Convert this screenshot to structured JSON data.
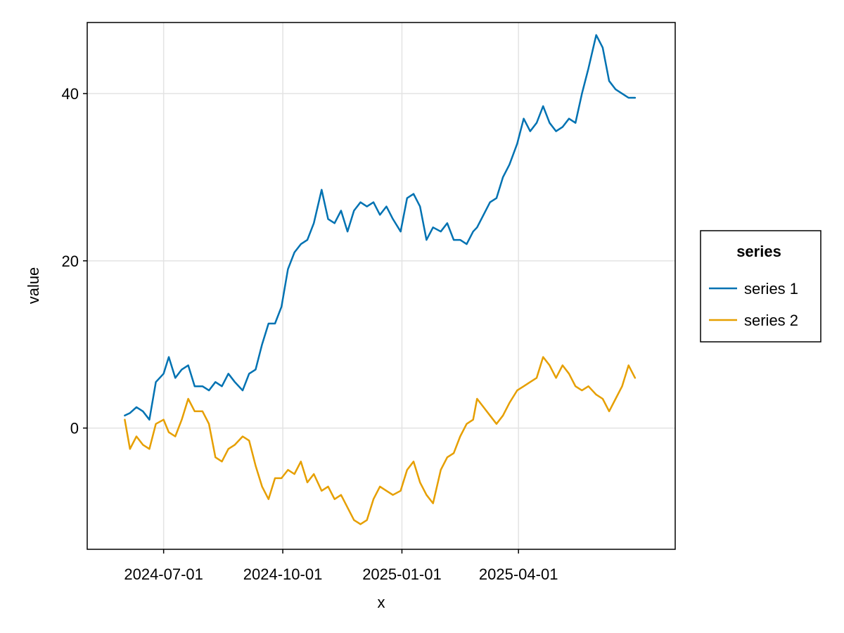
{
  "chart_data": {
    "type": "line",
    "xlabel": "x",
    "ylabel": "value",
    "x_axis": {
      "type": "date",
      "range": [
        "2024-05-03",
        "2025-07-31"
      ],
      "ticks": [
        "2024-07-01",
        "2024-10-01",
        "2025-01-01",
        "2025-04-01"
      ]
    },
    "y_axis": {
      "range": [
        -14.5,
        48.5
      ],
      "ticks": [
        0,
        20,
        40
      ]
    },
    "grid": true,
    "legend": {
      "title": "series",
      "position": "right"
    },
    "colors": {
      "series 1": "#0072b2",
      "series 2": "#e69f00"
    },
    "x": [
      "2024-06-01",
      "2024-06-05",
      "2024-06-10",
      "2024-06-15",
      "2024-06-20",
      "2024-06-25",
      "2024-07-01",
      "2024-07-05",
      "2024-07-10",
      "2024-07-15",
      "2024-07-20",
      "2024-07-25",
      "2024-07-31",
      "2024-08-05",
      "2024-08-10",
      "2024-08-15",
      "2024-08-20",
      "2024-08-25",
      "2024-08-31",
      "2024-09-05",
      "2024-09-10",
      "2024-09-15",
      "2024-09-20",
      "2024-09-25",
      "2024-09-30",
      "2024-10-05",
      "2024-10-10",
      "2024-10-15",
      "2024-10-20",
      "2024-10-25",
      "2024-10-31",
      "2024-11-05",
      "2024-11-10",
      "2024-11-15",
      "2024-11-20",
      "2024-11-25",
      "2024-11-30",
      "2024-12-05",
      "2024-12-10",
      "2024-12-15",
      "2024-12-20",
      "2024-12-25",
      "2024-12-31",
      "2025-01-05",
      "2025-01-10",
      "2025-01-15",
      "2025-01-20",
      "2025-01-25",
      "2025-01-31",
      "2025-02-05",
      "2025-02-10",
      "2025-02-15",
      "2025-02-20",
      "2025-02-25",
      "2025-02-28",
      "2025-03-05",
      "2025-03-10",
      "2025-03-15",
      "2025-03-20",
      "2025-03-25",
      "2025-03-31",
      "2025-04-05",
      "2025-04-10",
      "2025-04-15",
      "2025-04-20",
      "2025-04-25",
      "2025-04-30",
      "2025-05-05",
      "2025-05-10",
      "2025-05-15",
      "2025-05-20",
      "2025-05-25",
      "2025-05-31",
      "2025-06-05",
      "2025-06-10",
      "2025-06-15",
      "2025-06-20",
      "2025-06-25",
      "2025-06-30"
    ],
    "series": [
      {
        "name": "series 1",
        "values": [
          1.5,
          1.8,
          2.5,
          2.0,
          1.0,
          5.5,
          6.5,
          8.5,
          6.0,
          7.0,
          7.5,
          5.0,
          5.0,
          4.5,
          5.5,
          5.0,
          6.5,
          5.5,
          4.5,
          6.5,
          7.0,
          10.0,
          12.5,
          12.5,
          14.5,
          19.0,
          21.0,
          22.0,
          22.5,
          24.5,
          28.5,
          25.0,
          24.5,
          26.0,
          23.5,
          26.0,
          27.0,
          26.5,
          27.0,
          25.5,
          26.5,
          25.0,
          23.5,
          27.5,
          28.0,
          26.5,
          22.5,
          24.0,
          23.5,
          24.5,
          22.5,
          22.5,
          22.0,
          23.5,
          24.0,
          25.5,
          27.0,
          27.5,
          30.0,
          31.5,
          34.0,
          37.0,
          35.5,
          36.5,
          38.5,
          36.5,
          35.5,
          36.0,
          37.0,
          36.5,
          40.0,
          43.0,
          47.0,
          45.5,
          41.5,
          40.5,
          40.0,
          39.5,
          39.5
        ]
      },
      {
        "name": "series 2",
        "values": [
          1.0,
          -2.5,
          -1.0,
          -2.0,
          -2.5,
          0.5,
          1.0,
          -0.5,
          -1.0,
          1.0,
          3.5,
          2.0,
          2.0,
          0.5,
          -3.5,
          -4.0,
          -2.5,
          -2.0,
          -1.0,
          -1.5,
          -4.5,
          -7.0,
          -8.5,
          -6.0,
          -6.0,
          -5.0,
          -5.5,
          -4.0,
          -6.5,
          -5.5,
          -7.5,
          -7.0,
          -8.5,
          -8.0,
          -9.5,
          -11.0,
          -11.5,
          -11.0,
          -8.5,
          -7.0,
          -7.5,
          -8.0,
          -7.5,
          -5.0,
          -4.0,
          -6.5,
          -8.0,
          -9.0,
          -5.0,
          -3.5,
          -3.0,
          -1.0,
          0.5,
          1.0,
          3.5,
          2.5,
          1.5,
          0.5,
          1.5,
          3.0,
          4.5,
          5.0,
          5.5,
          6.0,
          8.5,
          7.5,
          6.0,
          7.5,
          6.5,
          5.0,
          4.5,
          5.0,
          4.0,
          3.5,
          2.0,
          3.5,
          5.0,
          7.5,
          6.0
        ]
      }
    ]
  }
}
